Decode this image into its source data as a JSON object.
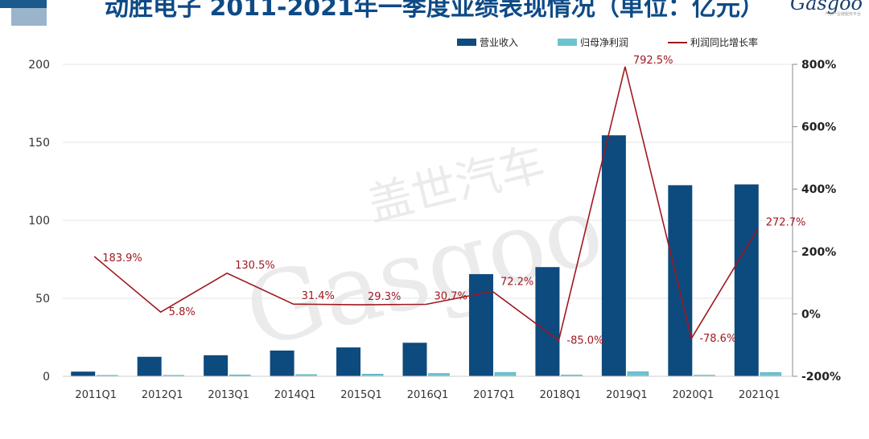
{
  "header": {
    "title": "动胜电子 2011-2021年一季度业绩表现情况（单位：亿元）",
    "logo": "Gasgoo",
    "logo_sub": "汽车产业链服务平台"
  },
  "watermark": {
    "cn": "盖世汽车",
    "en": "Gasgoo"
  },
  "colors": {
    "revenue": "#0d4a7e",
    "net_profit": "#6cc4cf",
    "growth": "#a01820",
    "axis_text": "#333333",
    "grid": "#e6e6e6"
  },
  "chart_data": {
    "type": "bar",
    "title": "动胜电子 2011-2021年一季度业绩表现情况（单位：亿元）",
    "categories": [
      "2011Q1",
      "2012Q1",
      "2013Q1",
      "2014Q1",
      "2015Q1",
      "2016Q1",
      "2017Q1",
      "2018Q1",
      "2019Q1",
      "2020Q1",
      "2021Q1"
    ],
    "series": [
      {
        "name": "营业收入",
        "type": "bar",
        "axis": "left",
        "color": "#0d4a7e",
        "values": [
          3,
          12.5,
          13.5,
          16.5,
          18.5,
          21.5,
          65.5,
          70,
          154.5,
          122.5,
          123
        ]
      },
      {
        "name": "归母净利润",
        "type": "bar",
        "axis": "left",
        "color": "#6cc4cf",
        "values": [
          0.6,
          0.6,
          0.9,
          1.1,
          1.4,
          1.8,
          2.5,
          0.8,
          2.9,
          0.7,
          2.4
        ]
      },
      {
        "name": "利润同比增长率",
        "type": "line",
        "axis": "right",
        "color": "#a01820",
        "values": [
          183.9,
          5.8,
          130.5,
          31.4,
          29.3,
          30.7,
          72.2,
          -85.0,
          792.5,
          -78.6,
          272.7
        ],
        "labels": [
          "183.9%",
          "5.8%",
          "130.5%",
          "31.4%",
          "29.3%",
          "30.7%",
          "72.2%",
          "-85.0%",
          "792.5%",
          "-78.6%",
          "272.7%"
        ]
      }
    ],
    "y_left": {
      "min": 0,
      "max": 200,
      "ticks": [
        0,
        50,
        100,
        150,
        200
      ],
      "tick_labels": [
        "0",
        "50",
        "100",
        "150",
        "200"
      ]
    },
    "y_right": {
      "min": -200,
      "max": 800,
      "ticks": [
        -200,
        0,
        200,
        400,
        600,
        800
      ],
      "tick_labels": [
        "-200%",
        "0%",
        "200%",
        "400%",
        "600%",
        "800%"
      ]
    },
    "grid": true,
    "legend_position": "top-right"
  }
}
